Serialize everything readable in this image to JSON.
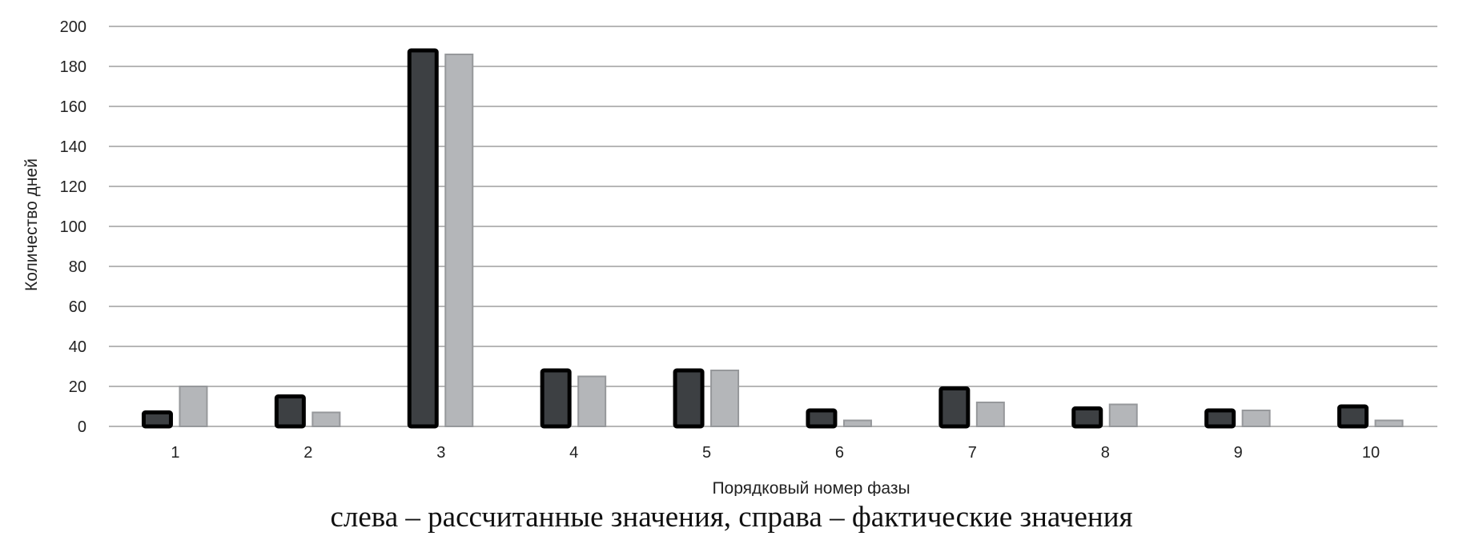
{
  "chart_data": {
    "type": "bar",
    "categories": [
      "1",
      "2",
      "3",
      "4",
      "5",
      "6",
      "7",
      "8",
      "9",
      "10"
    ],
    "series": [
      {
        "values": [
          7,
          15,
          188,
          28,
          28,
          8,
          19,
          9,
          8,
          10
        ]
      },
      {
        "values": [
          20,
          7,
          186,
          25,
          28,
          3,
          12,
          11,
          8,
          3
        ]
      }
    ],
    "xlabel": "Порядковый номер фазы",
    "ylabel": "Количество дней",
    "ylim": [
      0,
      200
    ],
    "yticks": [
      0,
      20,
      40,
      60,
      80,
      100,
      120,
      140,
      160,
      180,
      200
    ],
    "grid": true
  },
  "caption": "слева – рассчитанные значения, справа – фактические значения",
  "colors": {
    "series1_fill": "#3d4043",
    "series1_stroke": "#000000",
    "series2_fill": "#b4b6b9",
    "series2_stroke": "#96989b",
    "grid": "#8c8c8c"
  }
}
